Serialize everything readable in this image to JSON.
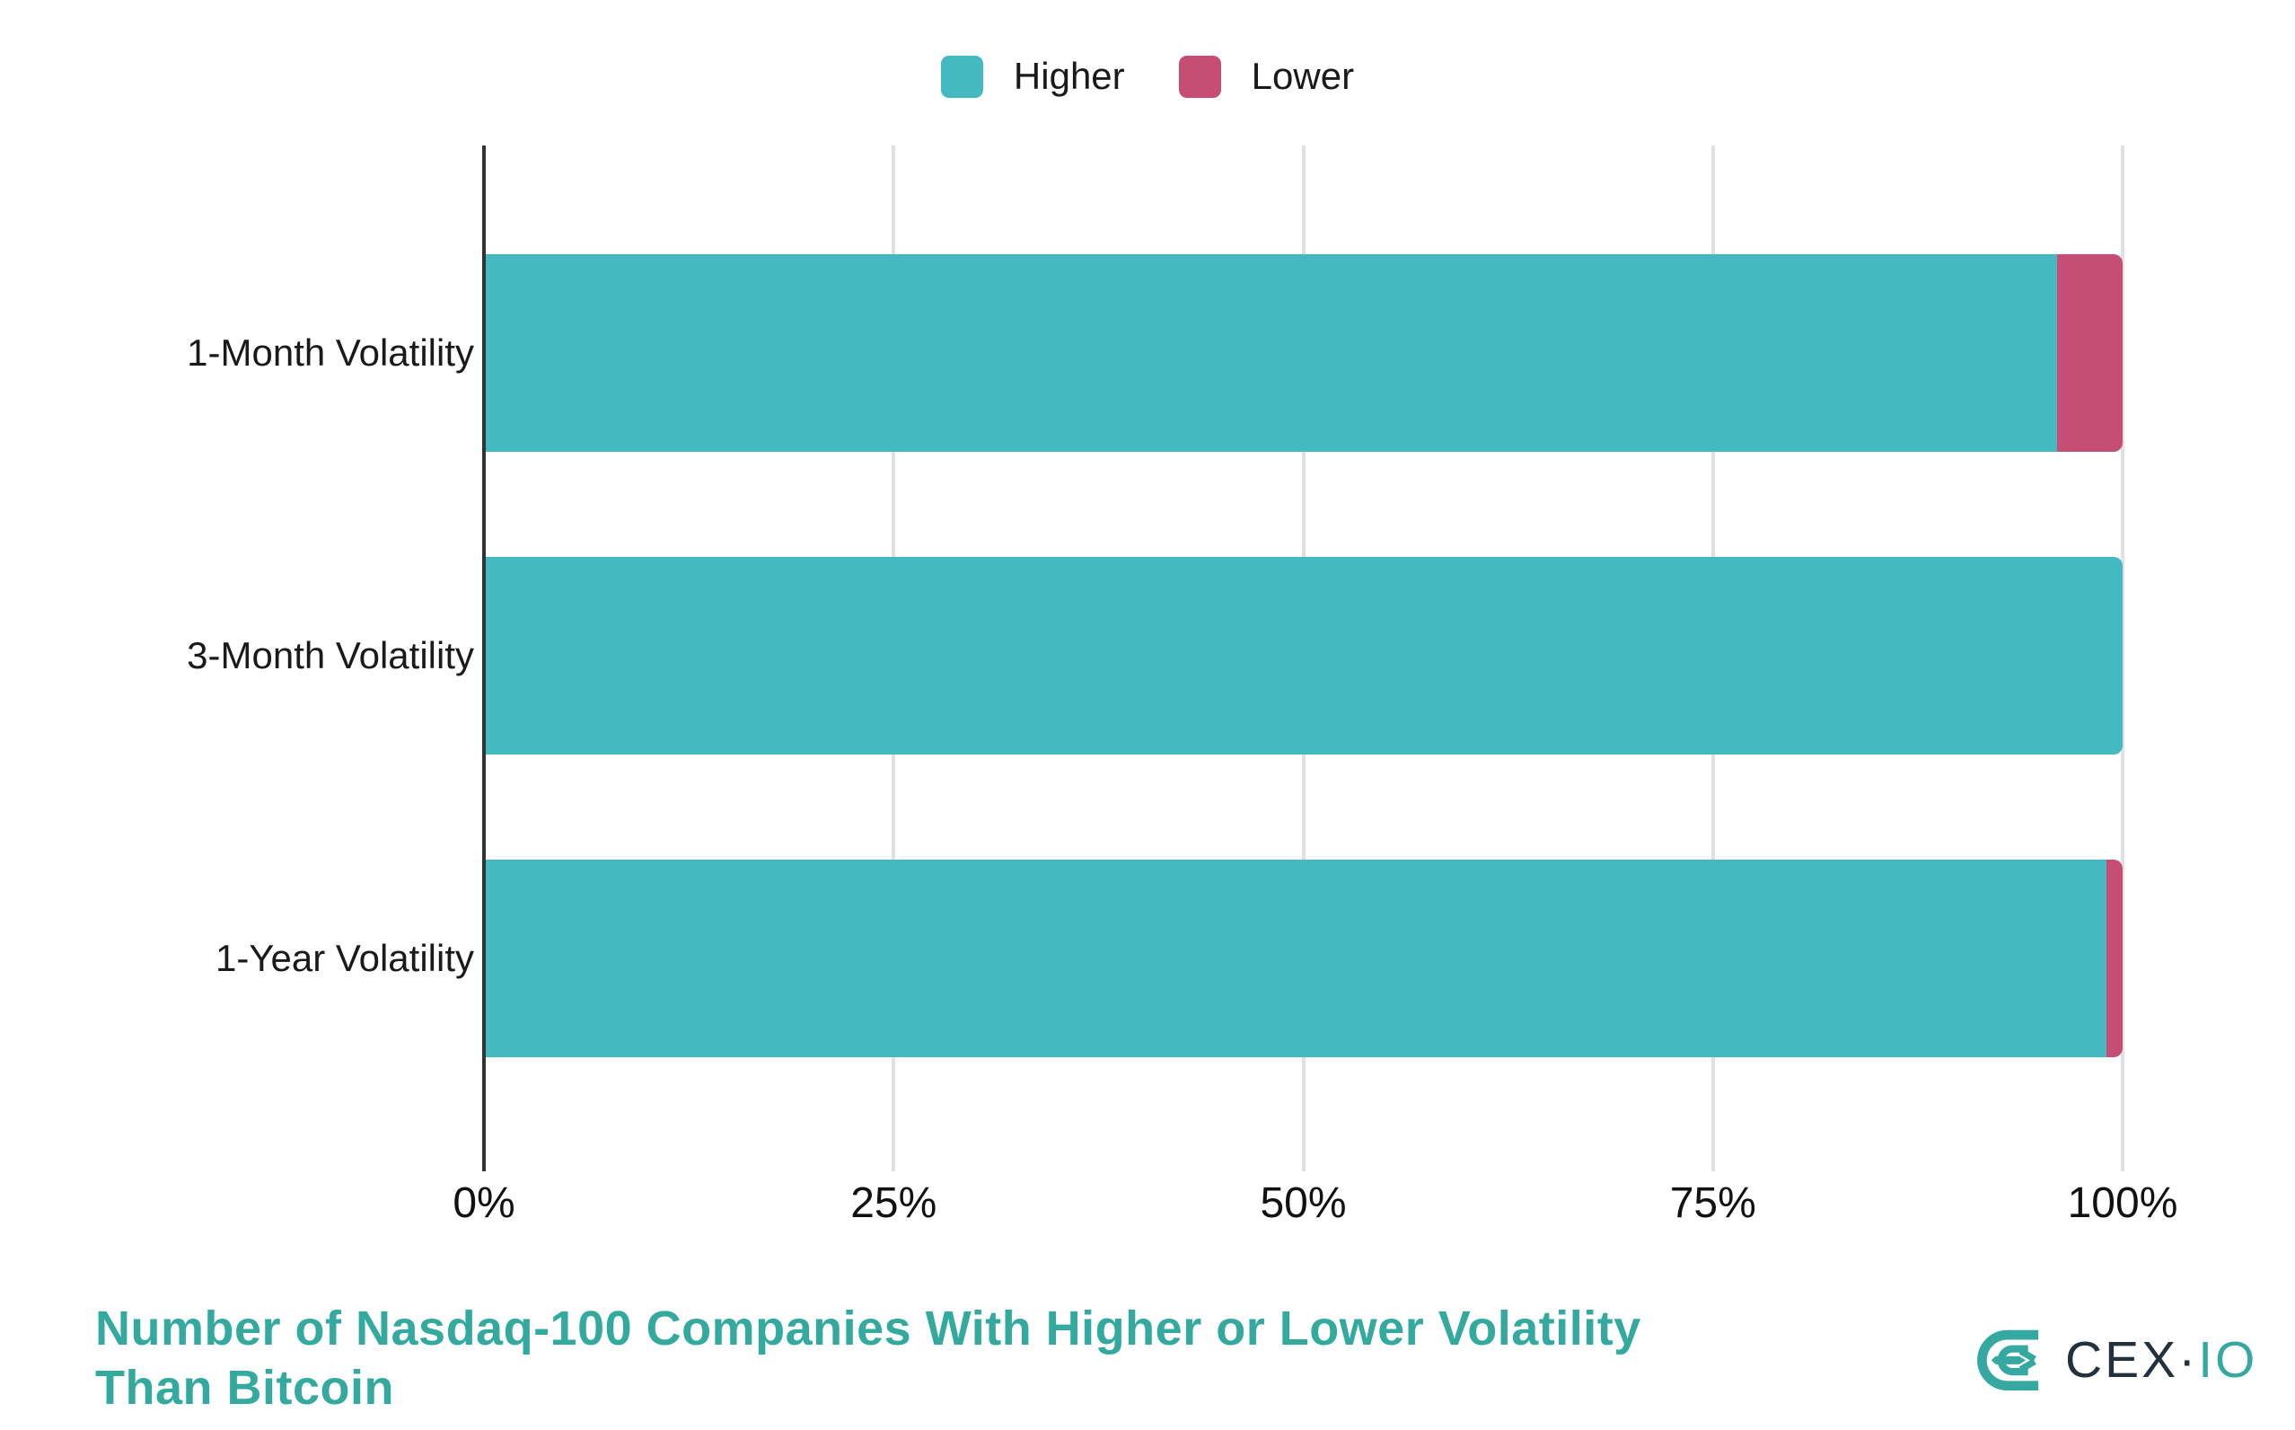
{
  "chart_data": {
    "type": "bar",
    "orientation": "horizontal",
    "stacked": true,
    "title": "Number of Nasdaq-100 Companies With Higher or Lower Volatility Than Bitcoin",
    "categories": [
      "1-Month Volatility",
      "3-Month Volatility",
      "1-Year Volatility"
    ],
    "series": [
      {
        "name": "Higher",
        "color": "#45b9c1",
        "values": [
          96,
          100,
          99
        ]
      },
      {
        "name": "Lower",
        "color": "#c64d73",
        "values": [
          4,
          0,
          1
        ]
      }
    ],
    "x_tick_labels": [
      "0%",
      "25%",
      "50%",
      "75%",
      "100%"
    ],
    "x_tick_values": [
      0,
      25,
      50,
      75,
      100
    ],
    "xlim": [
      0,
      100
    ],
    "grid": true,
    "legend_position": "top center",
    "xlabel": "",
    "ylabel": ""
  },
  "colors": {
    "higher": "#45b9c1",
    "lower": "#c64d73",
    "gridline": "#e1e1e1",
    "axis": "#333333",
    "label_text": "#1a1a1a",
    "title_teal": "#34aa9e",
    "logo_dark": "#22313d",
    "logo_teal": "#35a8a2"
  },
  "footer": {
    "title_line1": "Number of Nasdaq-100 Companies With Higher or Lower Volatility",
    "title_line2": "Than Bitcoin"
  },
  "branding": {
    "name": "CEX.IO",
    "wordmark_prefix": "CEX·",
    "wordmark_suffix": "IO"
  }
}
